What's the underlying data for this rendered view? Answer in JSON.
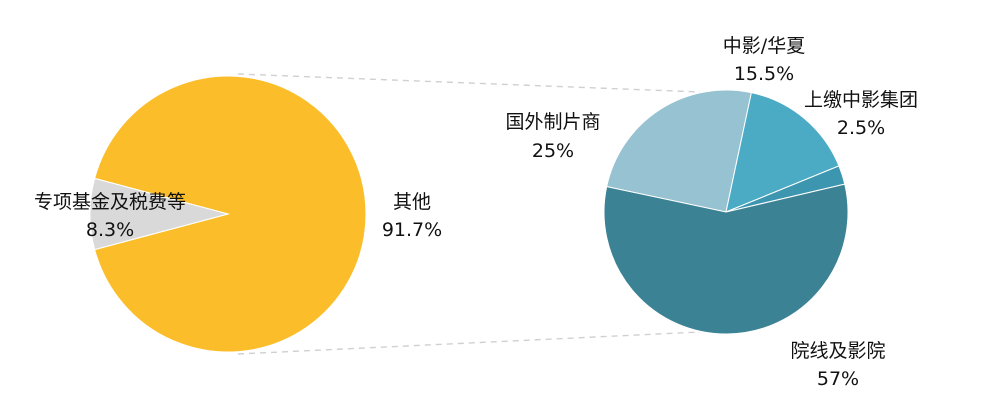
{
  "chart_data": [
    {
      "type": "pie",
      "slices": [
        {
          "label": "其他",
          "value": 91.7,
          "display": "91.7%",
          "color": "#FBBE2A"
        },
        {
          "label": "专项基金及税费等",
          "value": 8.3,
          "display": "8.3%",
          "color": "#D9D9D9"
        }
      ]
    },
    {
      "type": "pie",
      "slices": [
        {
          "label": "院线及影院",
          "value": 57,
          "display": "57%",
          "color": "#3C8295"
        },
        {
          "label": "国外制片商",
          "value": 25,
          "display": "25%",
          "color": "#97C2D2"
        },
        {
          "label": "中影/华夏",
          "value": 15.5,
          "display": "15.5%",
          "color": "#4BAAC4"
        },
        {
          "label": "上缴中影集团",
          "value": 2.5,
          "display": "2.5%",
          "color": "#3D96B0"
        }
      ]
    }
  ],
  "colors": {
    "connector": "#D0D0D0",
    "background": "#FFFFFF"
  }
}
